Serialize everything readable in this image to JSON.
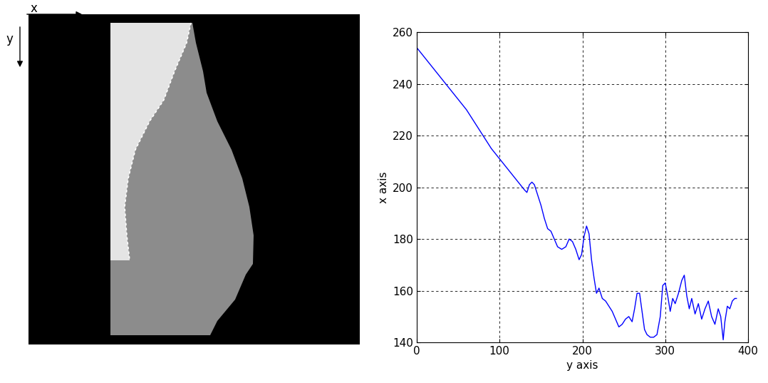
{
  "chart_data": {
    "type": "line",
    "x_label": "y axis",
    "y_label": "x axis",
    "x": [
      0,
      10,
      20,
      30,
      40,
      50,
      60,
      70,
      80,
      90,
      100,
      110,
      120,
      130,
      133,
      136,
      139,
      142,
      146,
      150,
      154,
      158,
      162,
      166,
      170,
      175,
      180,
      184,
      188,
      192,
      196,
      199,
      202,
      205,
      208,
      211,
      214,
      217,
      220,
      224,
      228,
      232,
      236,
      240,
      244,
      248,
      252,
      256,
      260,
      263,
      266,
      269,
      272,
      275,
      278,
      282,
      286,
      290,
      294,
      297,
      300,
      303,
      306,
      309,
      312,
      316,
      320,
      323,
      326,
      329,
      332,
      336,
      340,
      344,
      348,
      352,
      356,
      360,
      364,
      367,
      370,
      372,
      375,
      378,
      381,
      384,
      386
    ],
    "values": [
      254,
      250,
      246,
      242,
      238,
      234,
      230,
      225,
      220,
      215,
      211,
      207,
      203,
      199,
      198,
      201,
      202,
      201,
      197,
      193,
      188,
      184,
      183,
      180,
      177,
      176,
      177,
      180,
      179,
      176,
      172,
      174,
      181,
      185,
      182,
      172,
      165,
      159,
      161,
      157,
      156,
      154,
      152,
      149,
      146,
      147,
      149,
      150,
      148,
      153,
      159,
      159,
      152,
      145,
      143,
      142,
      142,
      143,
      150,
      162,
      163,
      158,
      152,
      157,
      155,
      159,
      164,
      166,
      158,
      153,
      157,
      151,
      155,
      149,
      153,
      156,
      150,
      147,
      153,
      150,
      141,
      148,
      154,
      153,
      156,
      157,
      157
    ],
    "color": "#0000ff",
    "xlim": [
      0,
      400
    ],
    "xticks": [
      0,
      100,
      200,
      300,
      400
    ],
    "ylim": [
      140,
      260
    ],
    "yticks": [
      140,
      160,
      180,
      200,
      220,
      240,
      260
    ],
    "grid": true
  },
  "image": {
    "x_arrow_label": "x",
    "y_arrow_label": "y"
  }
}
